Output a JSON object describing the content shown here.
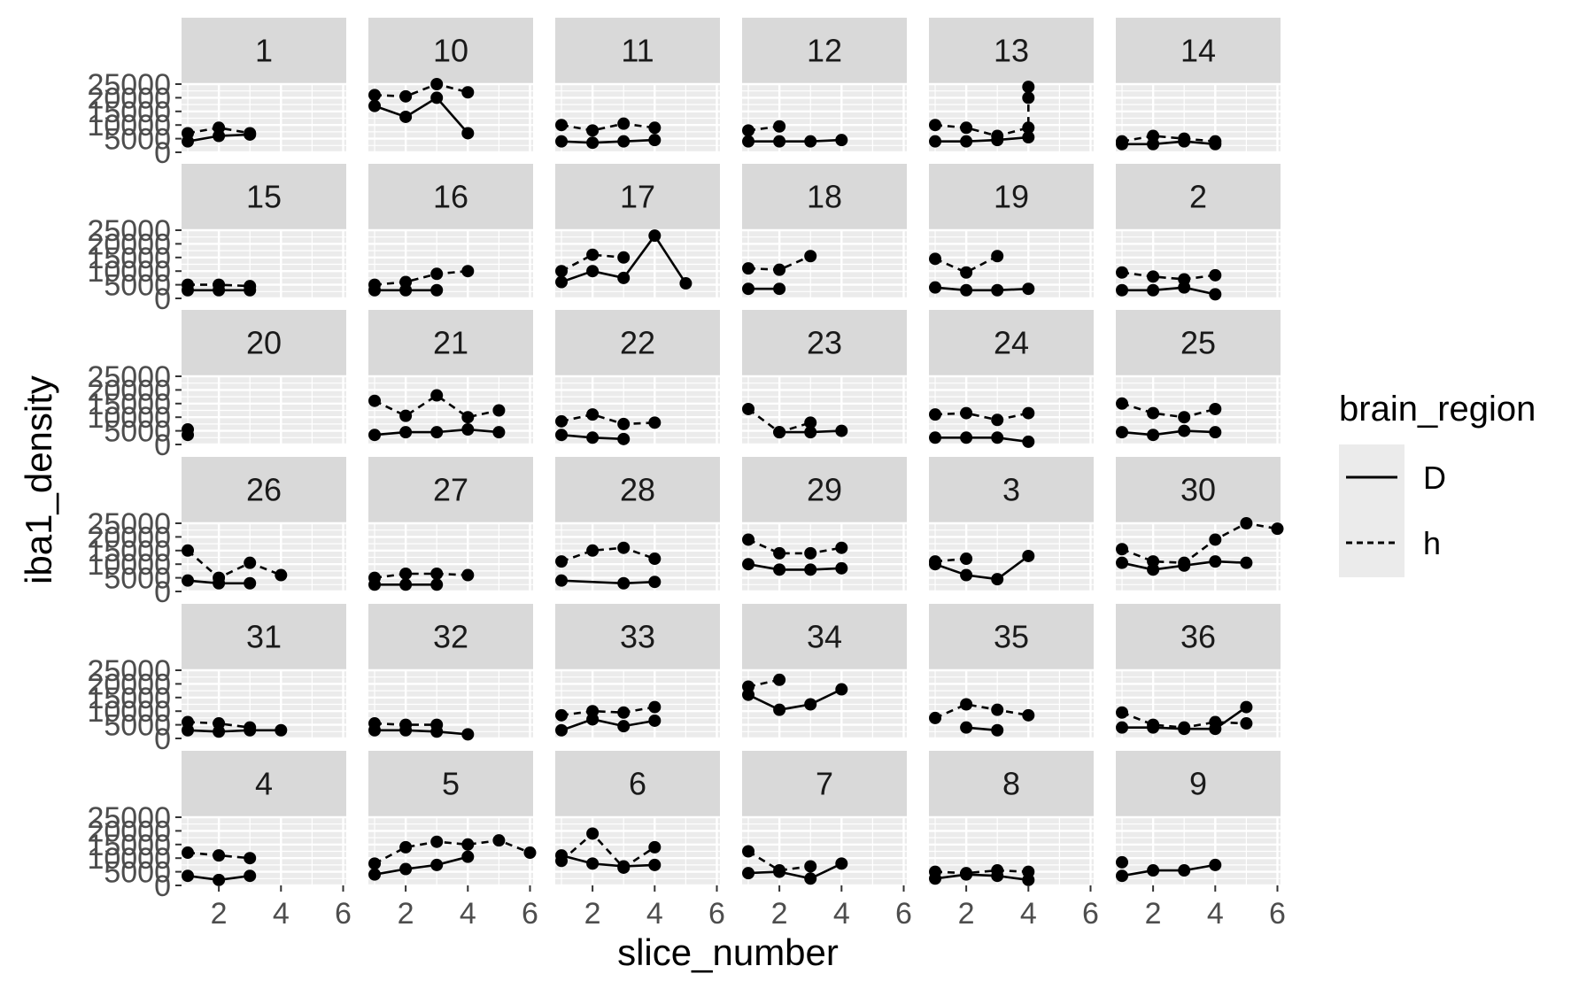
{
  "chart_data": {
    "type": "line",
    "xlabel": "slice_number",
    "ylabel": "iba1_density",
    "xlim": [
      0.8,
      6.1
    ],
    "ylim": [
      0,
      25000
    ],
    "x_ticks": [
      2,
      4,
      6
    ],
    "x_tick_labels": [
      "2",
      "4",
      "6"
    ],
    "y_ticks": [
      0,
      5000,
      10000,
      15000,
      20000,
      25000
    ],
    "y_tick_labels": [
      "0",
      "5000",
      "10000",
      "15000",
      "20000",
      "25000"
    ],
    "grid": true,
    "legend": {
      "title": "brain_region",
      "placement": "right",
      "entries": [
        {
          "label": "D",
          "linetype": "solid"
        },
        {
          "label": "h",
          "linetype": "dashed"
        }
      ]
    },
    "colors": {
      "panel_bg": "#ebebeb",
      "strip_bg": "#d9d9d9",
      "grid": "#ffffff",
      "series": "#000000"
    },
    "facets": [
      {
        "label": "1",
        "D": [
          [
            1,
            4000
          ],
          [
            2,
            6000
          ],
          [
            3,
            6500
          ]
        ],
        "h": [
          [
            1,
            7000
          ],
          [
            2,
            9000
          ],
          [
            3,
            7000
          ]
        ]
      },
      {
        "label": "10",
        "D": [
          [
            1,
            17000
          ],
          [
            2,
            13000
          ],
          [
            3,
            20000
          ],
          [
            4,
            7000
          ]
        ],
        "h": [
          [
            1,
            21000
          ],
          [
            2,
            20500
          ],
          [
            3,
            25000
          ],
          [
            4,
            22000
          ]
        ]
      },
      {
        "label": "11",
        "D": [
          [
            1,
            4000
          ],
          [
            2,
            3500
          ],
          [
            3,
            4000
          ],
          [
            4,
            4500
          ]
        ],
        "h": [
          [
            1,
            10000
          ],
          [
            2,
            8000
          ],
          [
            3,
            10500
          ],
          [
            4,
            9000
          ]
        ]
      },
      {
        "label": "12",
        "D": [
          [
            1,
            4000
          ],
          [
            2,
            4000
          ],
          [
            3,
            4000
          ],
          [
            4,
            4500
          ]
        ],
        "h": [
          [
            1,
            8000
          ],
          [
            2,
            9500
          ]
        ]
      },
      {
        "label": "13",
        "D": [
          [
            1,
            4000
          ],
          [
            2,
            4000
          ],
          [
            3,
            4500
          ],
          [
            4,
            5500
          ]
        ],
        "h": [
          [
            1,
            10000
          ],
          [
            2,
            9000
          ],
          [
            3,
            6000
          ],
          [
            4,
            9000
          ],
          [
            4,
            20000
          ],
          [
            4,
            24000
          ]
        ]
      },
      {
        "label": "14",
        "D": [
          [
            1,
            3000
          ],
          [
            2,
            3000
          ],
          [
            3,
            4000
          ],
          [
            4,
            3000
          ]
        ],
        "h": [
          [
            1,
            4000
          ],
          [
            2,
            6000
          ],
          [
            3,
            5000
          ],
          [
            4,
            4000
          ]
        ]
      },
      {
        "label": "15",
        "D": [
          [
            1,
            3000
          ],
          [
            2,
            3000
          ],
          [
            3,
            3000
          ]
        ],
        "h": [
          [
            1,
            5000
          ],
          [
            2,
            5000
          ],
          [
            3,
            4500
          ]
        ]
      },
      {
        "label": "16",
        "D": [
          [
            1,
            3000
          ],
          [
            2,
            3000
          ],
          [
            3,
            3000
          ]
        ],
        "h": [
          [
            1,
            5000
          ],
          [
            2,
            6000
          ],
          [
            3,
            9000
          ],
          [
            4,
            10000
          ]
        ]
      },
      {
        "label": "17",
        "D": [
          [
            1,
            6000
          ],
          [
            2,
            10000
          ],
          [
            3,
            7500
          ],
          [
            4,
            23000
          ],
          [
            5,
            5500
          ]
        ],
        "h": [
          [
            1,
            10000
          ],
          [
            2,
            16000
          ],
          [
            3,
            15000
          ]
        ]
      },
      {
        "label": "18",
        "D": [
          [
            1,
            3500
          ],
          [
            2,
            3500
          ]
        ],
        "h": [
          [
            1,
            11000
          ],
          [
            2,
            10500
          ],
          [
            3,
            15500
          ]
        ]
      },
      {
        "label": "19",
        "D": [
          [
            1,
            4000
          ],
          [
            2,
            3000
          ],
          [
            3,
            3000
          ],
          [
            4,
            3500
          ]
        ],
        "h": [
          [
            1,
            14500
          ],
          [
            2,
            9500
          ],
          [
            3,
            15500
          ]
        ]
      },
      {
        "label": "2",
        "D": [
          [
            1,
            3000
          ],
          [
            2,
            3000
          ],
          [
            3,
            4000
          ],
          [
            4,
            1500
          ]
        ],
        "h": [
          [
            1,
            9500
          ],
          [
            2,
            8000
          ],
          [
            3,
            7000
          ],
          [
            4,
            8500
          ]
        ]
      },
      {
        "label": "20",
        "D": [
          [
            1,
            3500
          ]
        ],
        "h": [
          [
            1,
            5500
          ]
        ]
      },
      {
        "label": "21",
        "D": [
          [
            1,
            3500
          ],
          [
            2,
            4500
          ],
          [
            3,
            4500
          ],
          [
            4,
            5500
          ],
          [
            5,
            4500
          ]
        ],
        "h": [
          [
            1,
            16000
          ],
          [
            2,
            10500
          ],
          [
            3,
            18000
          ],
          [
            4,
            10000
          ],
          [
            5,
            12500
          ]
        ]
      },
      {
        "label": "22",
        "D": [
          [
            1,
            3500
          ],
          [
            2,
            2500
          ],
          [
            3,
            2000
          ]
        ],
        "h": [
          [
            1,
            8500
          ],
          [
            2,
            11000
          ],
          [
            3,
            7500
          ],
          [
            4,
            8000
          ]
        ]
      },
      {
        "label": "23",
        "D": [
          [
            2,
            4500
          ],
          [
            3,
            4500
          ],
          [
            4,
            5000
          ]
        ],
        "h": [
          [
            1,
            13000
          ],
          [
            2,
            4500
          ],
          [
            3,
            8000
          ]
        ]
      },
      {
        "label": "24",
        "D": [
          [
            1,
            2500
          ],
          [
            2,
            2500
          ],
          [
            3,
            2500
          ],
          [
            4,
            1000
          ]
        ],
        "h": [
          [
            1,
            11000
          ],
          [
            2,
            11500
          ],
          [
            3,
            9000
          ],
          [
            4,
            11500
          ]
        ]
      },
      {
        "label": "25",
        "D": [
          [
            1,
            4500
          ],
          [
            2,
            3500
          ],
          [
            3,
            5000
          ],
          [
            4,
            4500
          ]
        ],
        "h": [
          [
            1,
            15000
          ],
          [
            2,
            11500
          ],
          [
            3,
            10000
          ],
          [
            4,
            13000
          ]
        ]
      },
      {
        "label": "26",
        "D": [
          [
            1,
            4000
          ],
          [
            2,
            3000
          ],
          [
            3,
            3000
          ]
        ],
        "h": [
          [
            1,
            15000
          ],
          [
            2,
            5000
          ],
          [
            3,
            10500
          ],
          [
            4,
            6000
          ]
        ]
      },
      {
        "label": "27",
        "D": [
          [
            1,
            2500
          ],
          [
            2,
            2500
          ],
          [
            3,
            2500
          ]
        ],
        "h": [
          [
            1,
            5000
          ],
          [
            2,
            6500
          ],
          [
            3,
            6500
          ],
          [
            4,
            6000
          ]
        ]
      },
      {
        "label": "28",
        "D": [
          [
            1,
            4000
          ],
          [
            3,
            3000
          ],
          [
            4,
            3500
          ]
        ],
        "h": [
          [
            1,
            11000
          ],
          [
            2,
            15000
          ],
          [
            3,
            16000
          ],
          [
            4,
            12000
          ]
        ]
      },
      {
        "label": "29",
        "D": [
          [
            1,
            10000
          ],
          [
            2,
            8000
          ],
          [
            3,
            8000
          ],
          [
            4,
            8500
          ]
        ],
        "h": [
          [
            1,
            19000
          ],
          [
            2,
            14000
          ],
          [
            3,
            14000
          ],
          [
            4,
            16000
          ]
        ]
      },
      {
        "label": "3",
        "D": [
          [
            1,
            10000
          ],
          [
            2,
            6000
          ],
          [
            3,
            4500
          ],
          [
            4,
            13000
          ]
        ],
        "h": [
          [
            1,
            11000
          ],
          [
            2,
            12000
          ]
        ]
      },
      {
        "label": "30",
        "D": [
          [
            1,
            10500
          ],
          [
            2,
            8000
          ],
          [
            3,
            9500
          ],
          [
            4,
            11000
          ],
          [
            5,
            10500
          ]
        ],
        "h": [
          [
            1,
            15500
          ],
          [
            2,
            11000
          ],
          [
            3,
            10500
          ],
          [
            4,
            19000
          ],
          [
            5,
            25000
          ],
          [
            6,
            23000
          ]
        ]
      },
      {
        "label": "31",
        "D": [
          [
            1,
            3000
          ],
          [
            2,
            2500
          ],
          [
            3,
            3000
          ],
          [
            4,
            3000
          ]
        ],
        "h": [
          [
            1,
            6000
          ],
          [
            2,
            5500
          ],
          [
            3,
            4000
          ]
        ]
      },
      {
        "label": "32",
        "D": [
          [
            1,
            3000
          ],
          [
            2,
            3000
          ],
          [
            3,
            2500
          ],
          [
            4,
            1500
          ]
        ],
        "h": [
          [
            1,
            5500
          ],
          [
            2,
            5000
          ],
          [
            3,
            5000
          ]
        ]
      },
      {
        "label": "33",
        "D": [
          [
            1,
            3000
          ],
          [
            2,
            7000
          ],
          [
            3,
            4500
          ],
          [
            4,
            6500
          ]
        ],
        "h": [
          [
            1,
            8500
          ],
          [
            2,
            10000
          ],
          [
            3,
            9500
          ],
          [
            4,
            11500
          ]
        ]
      },
      {
        "label": "34",
        "D": [
          [
            1,
            16000
          ],
          [
            2,
            10500
          ],
          [
            3,
            12500
          ],
          [
            4,
            18000
          ]
        ],
        "h": [
          [
            1,
            19000
          ],
          [
            2,
            21500
          ]
        ]
      },
      {
        "label": "35",
        "D": [
          [
            2,
            4000
          ],
          [
            3,
            3000
          ]
        ],
        "h": [
          [
            1,
            7500
          ],
          [
            2,
            12500
          ],
          [
            3,
            10500
          ],
          [
            4,
            8500
          ]
        ]
      },
      {
        "label": "36",
        "D": [
          [
            1,
            4000
          ],
          [
            2,
            4000
          ],
          [
            3,
            3500
          ],
          [
            4,
            3500
          ],
          [
            5,
            11500
          ]
        ],
        "h": [
          [
            1,
            9500
          ],
          [
            2,
            5000
          ],
          [
            3,
            4000
          ],
          [
            4,
            6000
          ],
          [
            5,
            5500
          ]
        ]
      },
      {
        "label": "4",
        "D": [
          [
            1,
            3500
          ],
          [
            2,
            2000
          ],
          [
            3,
            3500
          ]
        ],
        "h": [
          [
            1,
            12000
          ],
          [
            2,
            11000
          ],
          [
            3,
            10000
          ]
        ]
      },
      {
        "label": "5",
        "D": [
          [
            1,
            4000
          ],
          [
            2,
            6000
          ],
          [
            3,
            7500
          ],
          [
            4,
            10500
          ]
        ],
        "h": [
          [
            1,
            8000
          ],
          [
            2,
            14000
          ],
          [
            3,
            16000
          ],
          [
            4,
            15000
          ],
          [
            5,
            16500
          ],
          [
            6,
            12000
          ]
        ]
      },
      {
        "label": "6",
        "D": [
          [
            1,
            11000
          ],
          [
            2,
            8000
          ],
          [
            3,
            7000
          ],
          [
            4,
            7500
          ]
        ],
        "h": [
          [
            1,
            9000
          ],
          [
            2,
            19000
          ],
          [
            3,
            6500
          ],
          [
            4,
            14000
          ]
        ]
      },
      {
        "label": "7",
        "D": [
          [
            1,
            4500
          ],
          [
            2,
            5000
          ],
          [
            3,
            2500
          ],
          [
            4,
            8000
          ]
        ],
        "h": [
          [
            1,
            12500
          ],
          [
            2,
            5500
          ],
          [
            3,
            7000
          ]
        ]
      },
      {
        "label": "8",
        "D": [
          [
            1,
            2500
          ],
          [
            2,
            4000
          ],
          [
            3,
            3500
          ],
          [
            4,
            2000
          ]
        ],
        "h": [
          [
            1,
            5000
          ],
          [
            2,
            4500
          ],
          [
            3,
            5500
          ],
          [
            4,
            5000
          ]
        ]
      },
      {
        "label": "9",
        "D": [
          [
            1,
            3500
          ],
          [
            2,
            5500
          ],
          [
            3,
            5500
          ],
          [
            4,
            7500
          ]
        ],
        "h": [
          [
            1,
            8500
          ]
        ]
      }
    ]
  }
}
